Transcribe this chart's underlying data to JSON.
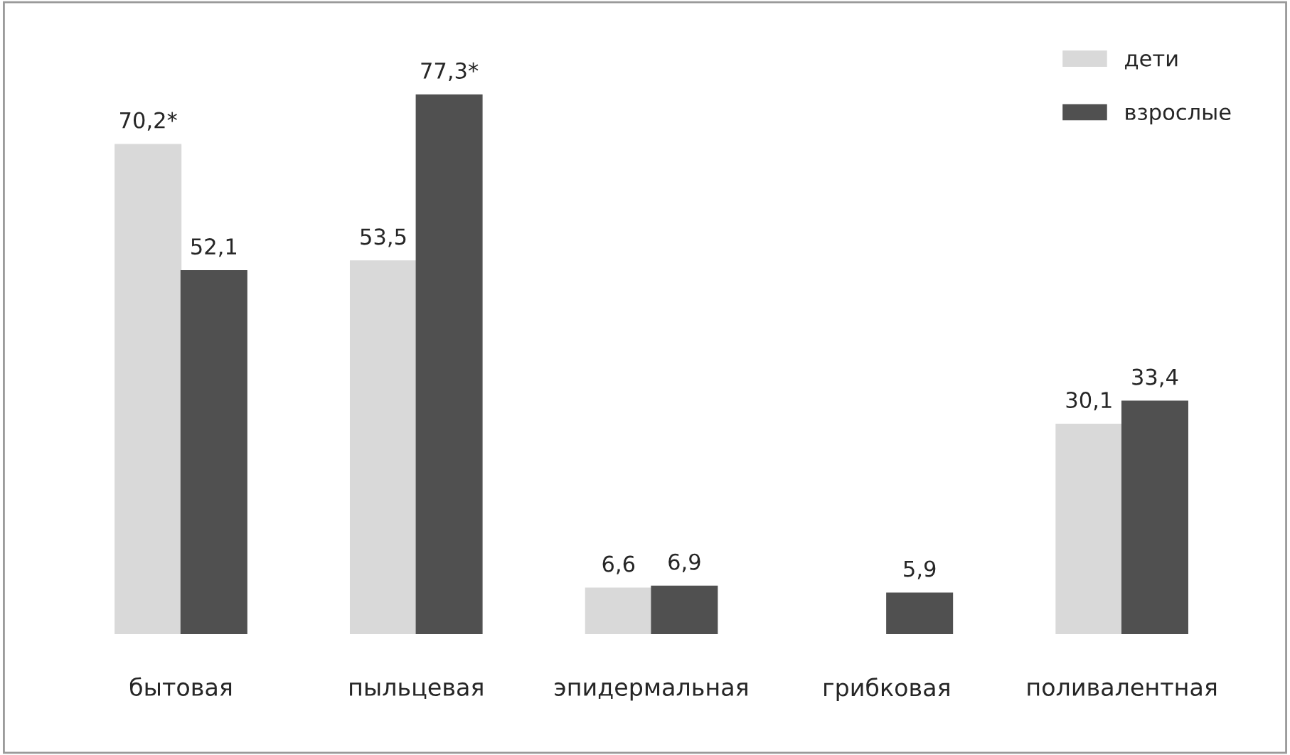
{
  "chart_data": {
    "type": "bar",
    "categories": [
      "бытовая",
      "пыльцевая",
      "эпидермальная",
      "грибковая",
      "поливалентная"
    ],
    "series": [
      {
        "name": "дети",
        "color": "#d9d9d9",
        "values": [
          70.2,
          53.5,
          6.6,
          null,
          30.1
        ],
        "value_labels": [
          "70,2*",
          "53,5",
          "6,6",
          null,
          "30,1"
        ]
      },
      {
        "name": "взрослые",
        "color": "#505050",
        "values": [
          52.1,
          77.3,
          6.9,
          5.9,
          33.4
        ],
        "value_labels": [
          "52,1",
          "77,3*",
          "6,9",
          "5,9",
          "33,4"
        ]
      }
    ],
    "legend": "top right",
    "grid": false
  }
}
